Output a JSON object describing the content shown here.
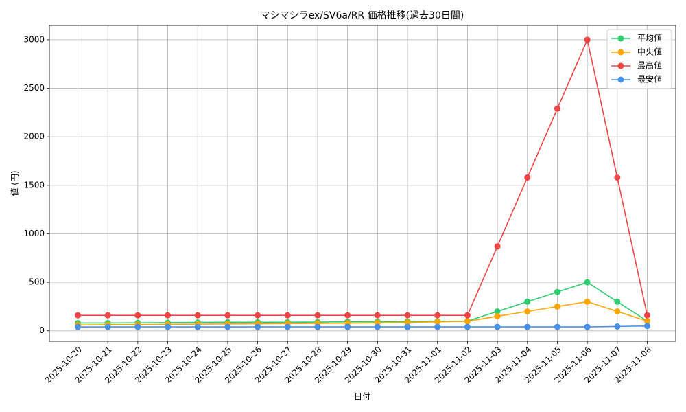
{
  "chart_data": {
    "type": "line",
    "title": "マシマシラex/SV6a/RR 価格推移(過去30日間)",
    "x_label": "日付",
    "y_label": "値 (円)",
    "categories": [
      "2025-10-20",
      "2025-10-21",
      "2025-10-22",
      "2025-10-23",
      "2025-10-24",
      "2025-10-25",
      "2025-10-26",
      "2025-10-27",
      "2025-10-28",
      "2025-10-29",
      "2025-10-30",
      "2025-10-31",
      "2025-11-01",
      "2025-11-02",
      "2025-11-03",
      "2025-11-04",
      "2025-11-05",
      "2025-11-06",
      "2025-11-07",
      "2025-11-08"
    ],
    "series": [
      {
        "name": "平均値",
        "color": "#2ecc71",
        "values": [
          80,
          80,
          82,
          84,
          86,
          88,
          88,
          88,
          90,
          92,
          94,
          95,
          97,
          100,
          200,
          300,
          400,
          500,
          300,
          100
        ]
      },
      {
        "name": "中央値",
        "color": "#ffa500",
        "values": [
          60,
          62,
          64,
          66,
          68,
          70,
          72,
          74,
          76,
          78,
          82,
          86,
          92,
          98,
          150,
          200,
          250,
          300,
          200,
          100
        ]
      },
      {
        "name": "最高値",
        "color": "#ef4444",
        "values": [
          160,
          160,
          160,
          160,
          160,
          160,
          160,
          160,
          160,
          160,
          160,
          160,
          160,
          160,
          870,
          1580,
          2290,
          3000,
          1580,
          160
        ]
      },
      {
        "name": "最安値",
        "color": "#4a90e2",
        "values": [
          40,
          40,
          40,
          40,
          40,
          40,
          40,
          40,
          40,
          40,
          40,
          40,
          40,
          40,
          40,
          40,
          40,
          40,
          45,
          50
        ]
      }
    ],
    "ylim": [
      -108,
      3148
    ],
    "yticks": [
      0,
      500,
      1000,
      1500,
      2000,
      2500,
      3000
    ],
    "grid": true,
    "legend": "upper right"
  }
}
